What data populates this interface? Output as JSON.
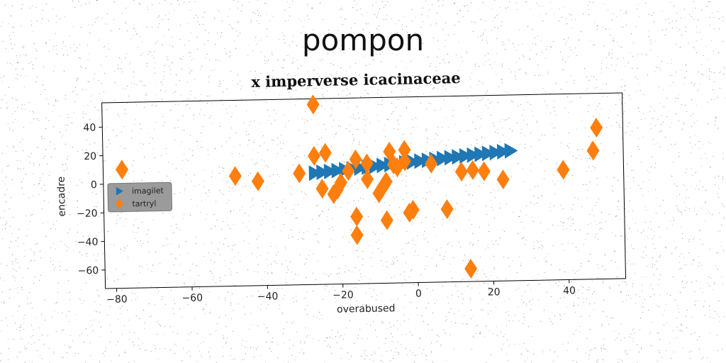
{
  "figure_title": "pompon",
  "chart_data": {
    "type": "scatter",
    "title": "x imperverse icacinaceae",
    "xlabel": "overabused",
    "ylabel": "encadre",
    "xlim": [
      -83,
      55
    ],
    "ylim": [
      -73,
      57
    ],
    "xticks": [
      -80,
      -60,
      -40,
      -20,
      0,
      20,
      40
    ],
    "xtick_labels": [
      "−80",
      "−60",
      "−40",
      "−20",
      "0",
      "20",
      "40"
    ],
    "yticks": [
      -60,
      -40,
      -20,
      0,
      20,
      40
    ],
    "ytick_labels": [
      "−60",
      "−40",
      "−20",
      "0",
      "20",
      "40"
    ],
    "grid": false,
    "legend_position": "center-left",
    "series": [
      {
        "name": "imagilet",
        "marker": "triangle-right",
        "color": "#1f77b4",
        "x": [
          -27,
          -25,
          -23,
          -21,
          -19,
          -17,
          -15,
          -13,
          -11,
          -9,
          -7,
          -5,
          -3,
          -1,
          1,
          3,
          5,
          7,
          9,
          11,
          13,
          15,
          17,
          19,
          21,
          23,
          25
        ],
        "y": [
          5,
          5.5,
          6,
          6.5,
          7,
          7.5,
          8,
          8.5,
          9,
          9.5,
          10,
          10.5,
          11,
          11.5,
          12,
          12.5,
          13,
          13.5,
          14,
          14.5,
          15,
          15.5,
          16,
          16.5,
          17,
          17.5,
          18
        ]
      },
      {
        "name": "tartryl",
        "marker": "thin-diamond",
        "color": "#ff7f0e",
        "x": [
          -27,
          -78,
          -48,
          -42,
          -31,
          -27,
          -24,
          -25,
          -22,
          -21,
          -20,
          -18,
          -16,
          -16,
          -16,
          -13,
          -13,
          -10,
          -9,
          -8,
          -8,
          -7,
          -6,
          -5,
          -3,
          -3,
          -2,
          -1,
          4,
          8,
          12,
          15,
          18,
          23,
          39,
          47,
          48,
          14
        ],
        "y": [
          53,
          10,
          4,
          0,
          5,
          17,
          19,
          -6,
          -10,
          -7,
          -2,
          6,
          14,
          -26,
          -39,
          11,
          0,
          -10,
          -6,
          -2,
          -29,
          19,
          10,
          8,
          20,
          12,
          -24,
          -22,
          10,
          -22,
          4,
          5,
          4,
          -2,
          4,
          17,
          33,
          -64
        ]
      }
    ]
  }
}
